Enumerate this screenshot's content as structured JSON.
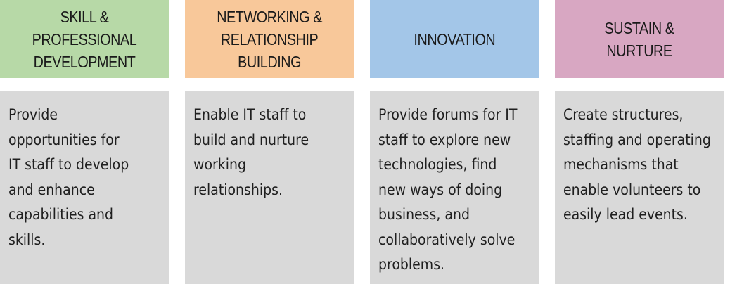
{
  "columns": [
    {
      "title": "SKILL & PROFESSIONAL\nDEVELOPMENT",
      "color": "#b7d9a7",
      "description": "Provide\nopportunities for\nIT staff to develop\nand enhance\ncapabilities and\nskills."
    },
    {
      "title": "NETWORKING &\nRELATIONSHIP\nBUILDING",
      "color": "#f8c89a",
      "description": "Enable IT staff to\nbuild and nurture\nworking\nrelationships."
    },
    {
      "title": "INNOVATION",
      "color": "#a3c6e8",
      "description": "Provide forums for IT\nstaff to explore new\ntechnologies, find\nnew ways of doing\nbusiness, and\ncollaboratively solve\nproblems."
    },
    {
      "title": "SUSTAIN & NURTURE",
      "color": "#d8a7c2",
      "description": "Create structures,\nstaffing and operating\nmechanisms that\nenable volunteers to\neasily lead events."
    }
  ],
  "body_color": "#d9d9d9"
}
